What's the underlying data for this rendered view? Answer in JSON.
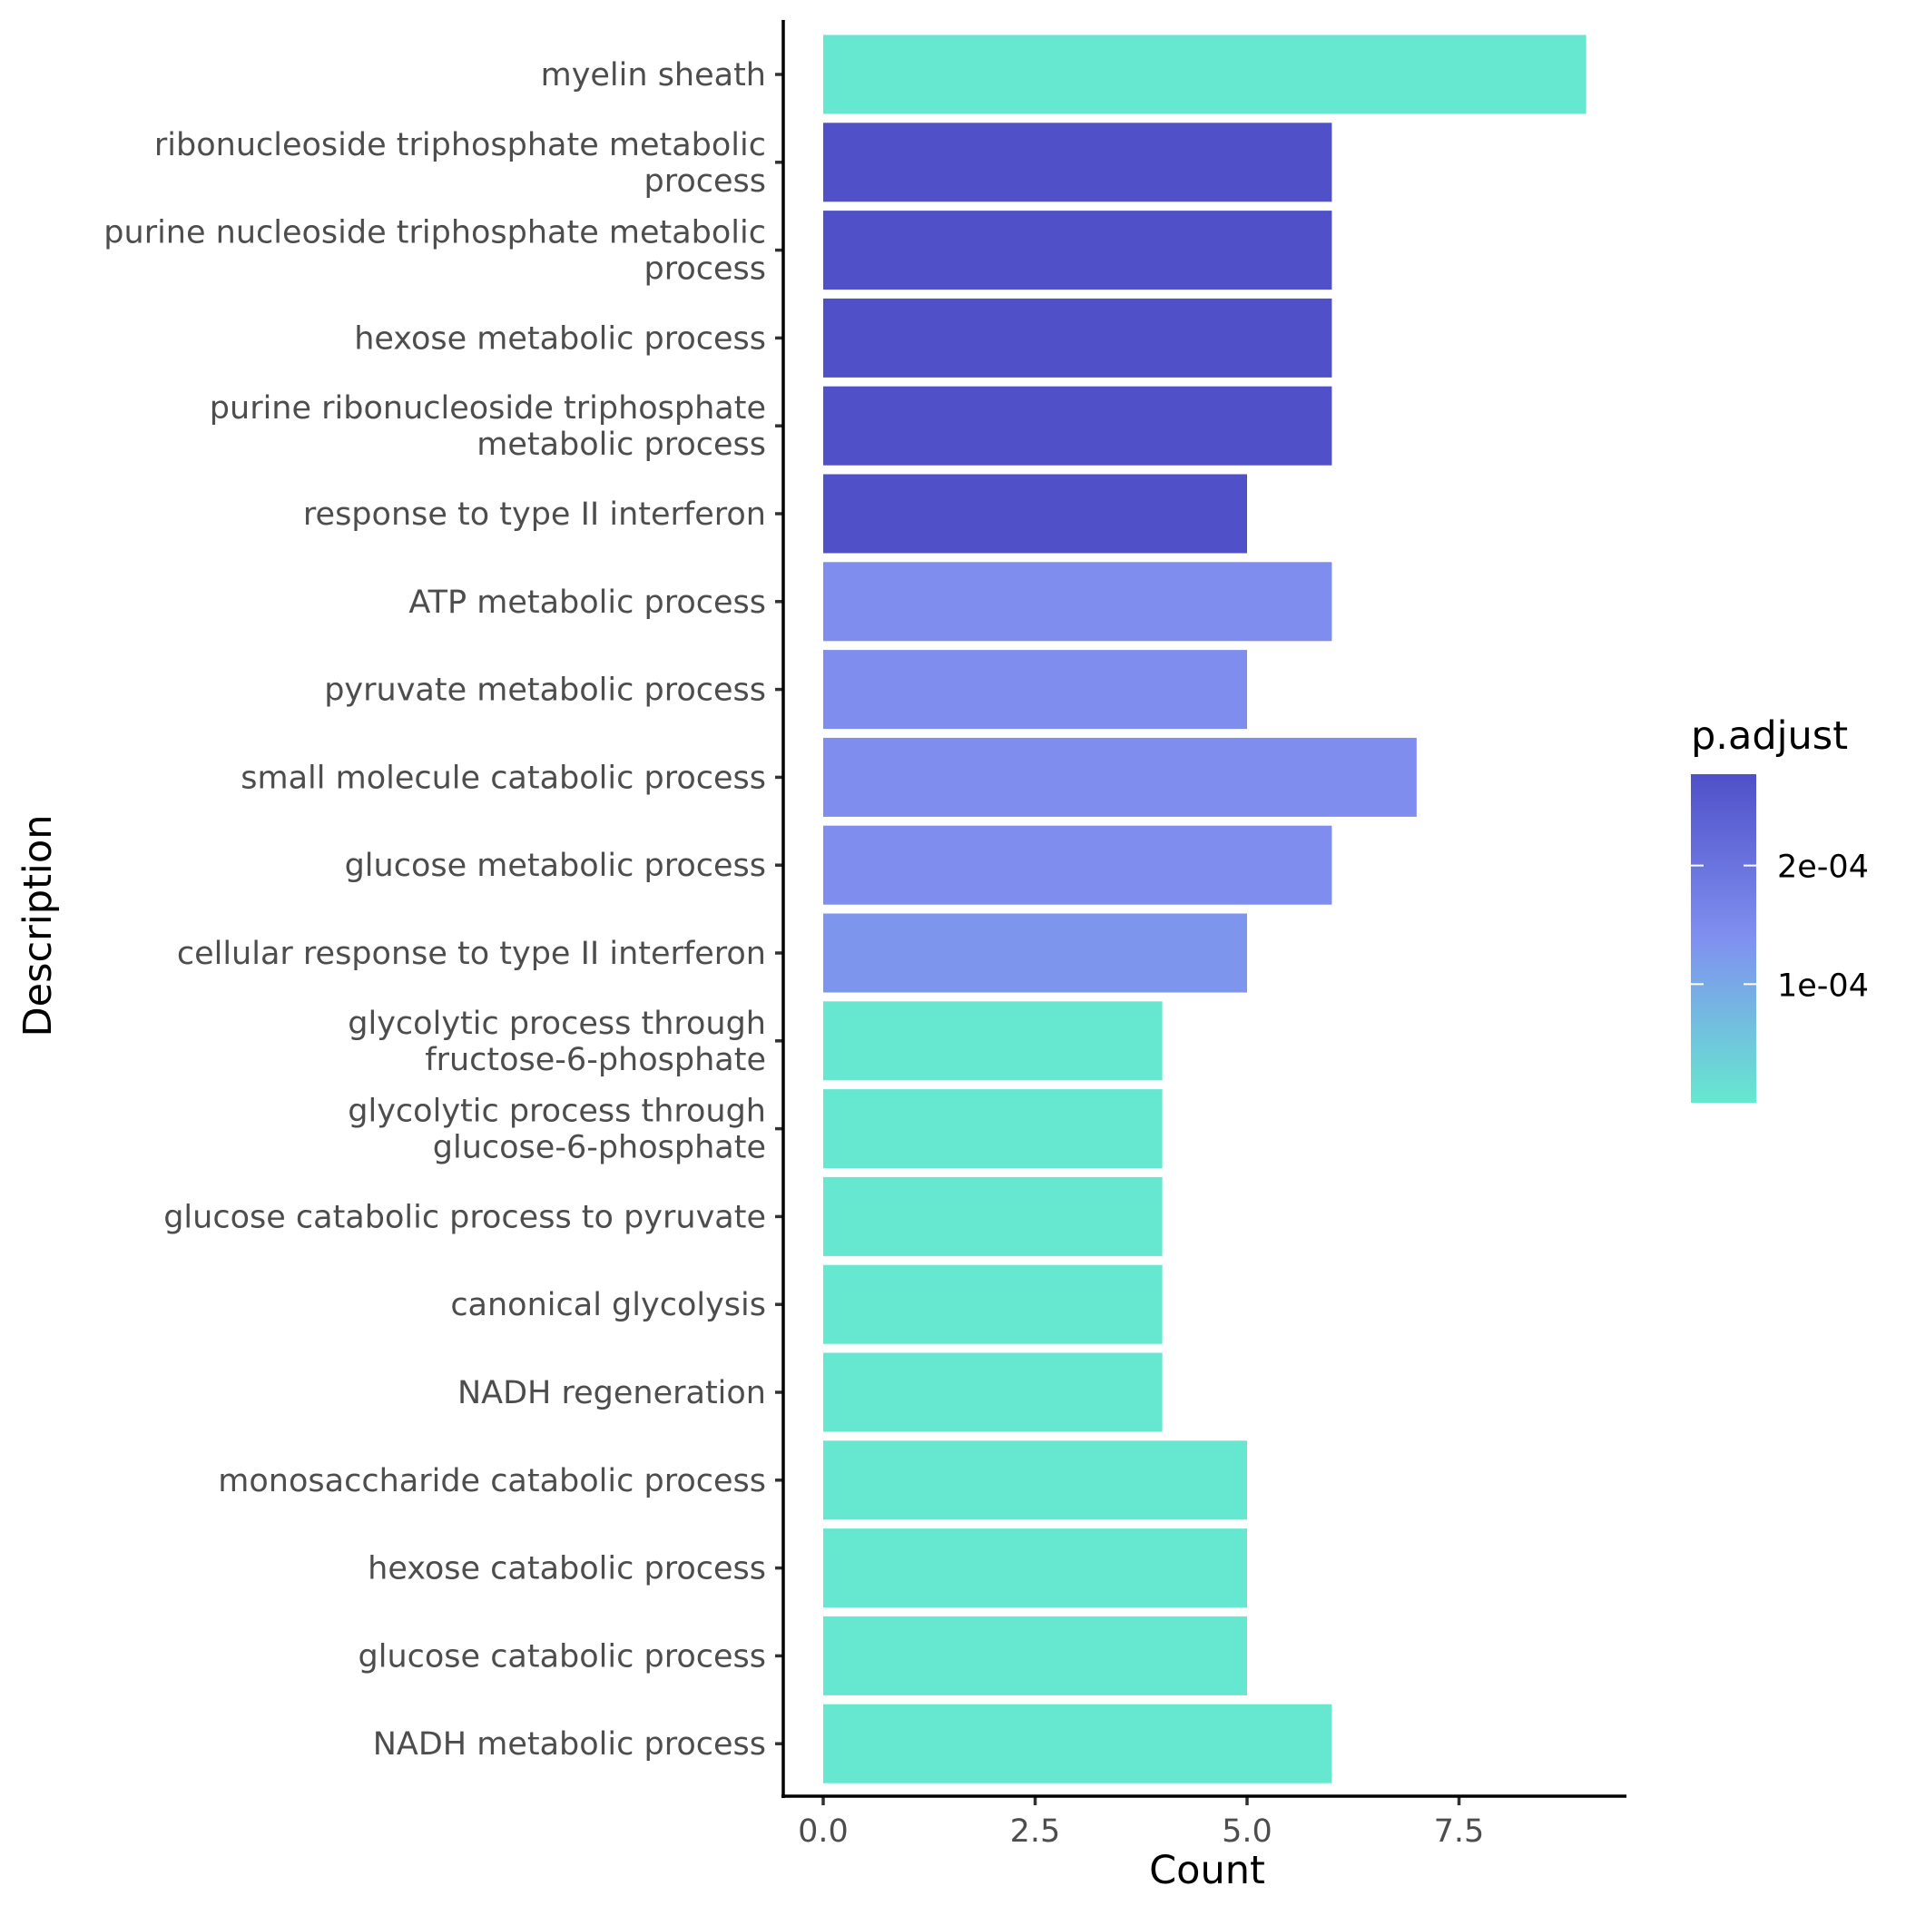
{
  "chart_data": {
    "type": "bar",
    "orientation": "horizontal",
    "xlabel": "Count",
    "ylabel": "Description",
    "xlim": [
      0,
      9.45
    ],
    "x_ticks": [
      0.0,
      2.5,
      5.0,
      7.5
    ],
    "x_tick_labels": [
      "0.0",
      "2.5",
      "5.0",
      "7.5"
    ],
    "grid": false,
    "categories": [
      "myelin sheath",
      "ribonucleoside triphosphate metabolic process",
      "purine nucleoside triphosphate metabolic process",
      "hexose metabolic process",
      "purine ribonucleoside triphosphate metabolic process",
      "response to type II interferon",
      "ATP metabolic process",
      "pyruvate metabolic process",
      "small molecule catabolic process",
      "glucose metabolic process",
      "cellular response to type II interferon",
      "glycolytic process through fructose-6-phosphate",
      "glycolytic process through glucose-6-phosphate",
      "glucose catabolic process to pyruvate",
      "canonical glycolysis",
      "NADH regeneration",
      "monosaccharide catabolic process",
      "hexose catabolic process",
      "glucose catabolic process",
      "NADH metabolic process"
    ],
    "category_label_lines": [
      [
        "myelin sheath"
      ],
      [
        "ribonucleoside triphosphate metabolic",
        "process"
      ],
      [
        "purine nucleoside triphosphate metabolic",
        "process"
      ],
      [
        "hexose metabolic process"
      ],
      [
        "purine ribonucleoside triphosphate",
        "metabolic process"
      ],
      [
        "response to type II interferon"
      ],
      [
        "ATP metabolic process"
      ],
      [
        "pyruvate metabolic process"
      ],
      [
        "small molecule catabolic process"
      ],
      [
        "glucose metabolic process"
      ],
      [
        "cellular response to type II interferon"
      ],
      [
        "glycolytic process through",
        "fructose-6-phosphate"
      ],
      [
        "glycolytic process through",
        "glucose-6-phosphate"
      ],
      [
        "glucose catabolic process to pyruvate"
      ],
      [
        "canonical glycolysis"
      ],
      [
        "NADH regeneration"
      ],
      [
        "monosaccharide catabolic process"
      ],
      [
        "hexose catabolic process"
      ],
      [
        "glucose catabolic process"
      ],
      [
        "NADH metabolic process"
      ]
    ],
    "values": [
      9,
      6,
      6,
      6,
      6,
      5,
      6,
      5,
      7,
      6,
      5,
      4,
      4,
      4,
      4,
      4,
      5,
      5,
      5,
      6
    ],
    "p_adjust": [
      1e-06,
      0.000275,
      0.000275,
      0.000275,
      0.000275,
      0.000275,
      0.000145,
      0.000145,
      0.000145,
      0.000145,
      0.00013,
      1e-06,
      1e-06,
      1e-06,
      1e-06,
      1e-06,
      1e-06,
      1e-06,
      1e-06,
      1e-06
    ],
    "legend": {
      "title": "p.adjust",
      "type": "colorbar",
      "position": "right",
      "range": [
        0,
        0.000277
      ],
      "ticks": [
        0.0001,
        0.0002
      ],
      "tick_labels": [
        "1e-04",
        "2e-04"
      ],
      "colors": {
        "low": "#66E8D0",
        "mid": "#8090F0",
        "high": "#4F50C8"
      }
    }
  }
}
